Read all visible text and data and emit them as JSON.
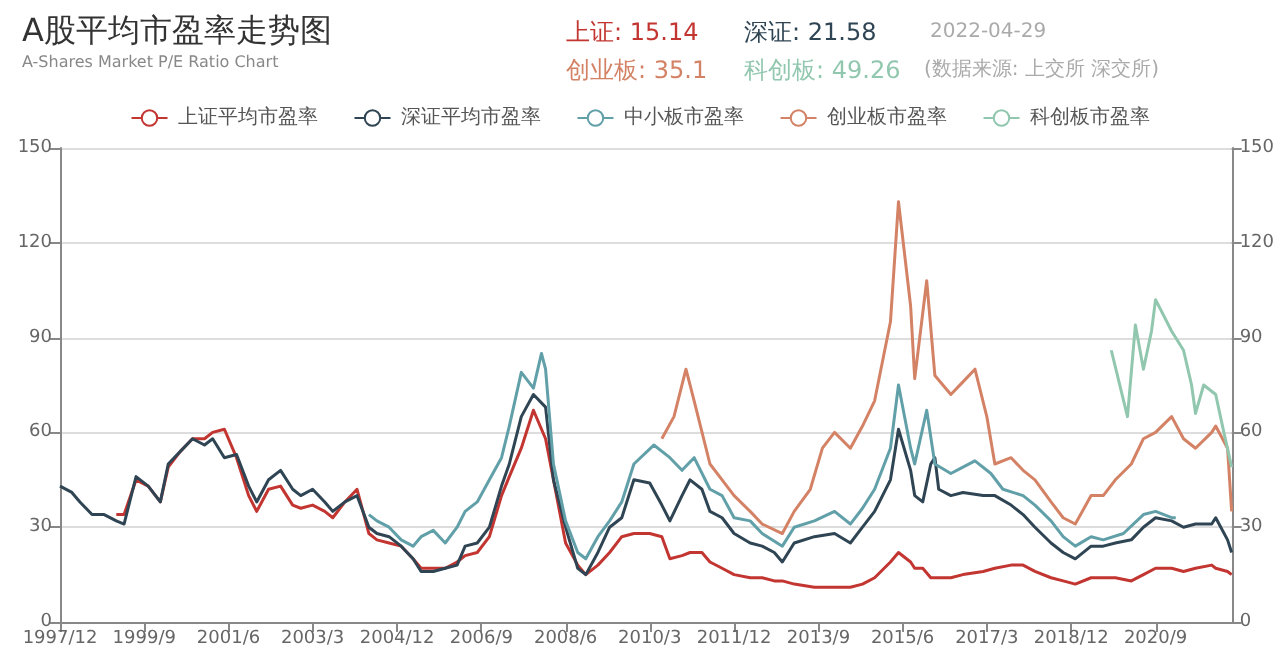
{
  "chart_data": {
    "type": "line",
    "title": "A股平均市盈率走势图",
    "subtitle": "A-Shares Market P/E Ratio Chart",
    "annotations": [
      "上证: 15.14",
      "深证: 21.58",
      "2022-04-29",
      "创业板: 35.1",
      "科创板: 49.26",
      "(数据来源: 上交所 深交所)"
    ],
    "xlim": [
      "1997-12",
      "2022-04"
    ],
    "xticks": [
      {
        "value": "1997-12",
        "label": "1997/12"
      },
      {
        "value": "1999-09",
        "label": "1999/9"
      },
      {
        "value": "2001-06",
        "label": "2001/6"
      },
      {
        "value": "2003-03",
        "label": "2003/3"
      },
      {
        "value": "2004-12",
        "label": "2004/12"
      },
      {
        "value": "2006-09",
        "label": "2006/9"
      },
      {
        "value": "2008-06",
        "label": "2008/6"
      },
      {
        "value": "2010-03",
        "label": "2010/3"
      },
      {
        "value": "2011-12",
        "label": "2011/12"
      },
      {
        "value": "2013-09",
        "label": "2013/9"
      },
      {
        "value": "2015-06",
        "label": "2015/6"
      },
      {
        "value": "2017-03",
        "label": "2017/3"
      },
      {
        "value": "2018-12",
        "label": "2018/12"
      },
      {
        "value": "2020-09",
        "label": "2020/9"
      }
    ],
    "ylim": [
      0,
      150
    ],
    "yticks": [
      0,
      30,
      60,
      90,
      120,
      150
    ],
    "y2lim": [
      0,
      150
    ],
    "y2ticks": [
      0,
      30,
      60,
      90,
      120,
      150
    ],
    "grid": "y",
    "legend": "top",
    "marker": "none",
    "line_style": "solid",
    "series": [
      {
        "name": "上证平均市盈率",
        "color": "#c23531",
        "x": [
          "1999-02",
          "1999-04",
          "1999-07",
          "1999-10",
          "2000-01",
          "2000-03",
          "2000-06",
          "2000-09",
          "2000-12",
          "2001-02",
          "2001-05",
          "2001-08",
          "2001-11",
          "2002-01",
          "2002-04",
          "2002-07",
          "2002-10",
          "2002-12",
          "2003-03",
          "2003-06",
          "2003-08",
          "2003-11",
          "2004-02",
          "2004-05",
          "2004-07",
          "2004-10",
          "2005-01",
          "2005-04",
          "2005-06",
          "2005-09",
          "2005-12",
          "2006-03",
          "2006-05",
          "2006-08",
          "2006-11",
          "2007-02",
          "2007-04",
          "2007-07",
          "2007-10",
          "2008-01",
          "2008-03",
          "2008-06",
          "2008-09",
          "2008-11",
          "2009-02",
          "2009-05",
          "2009-08",
          "2009-11",
          "2010-03",
          "2010-06",
          "2010-08",
          "2010-11",
          "2011-01",
          "2011-04",
          "2011-06",
          "2011-09",
          "2011-12",
          "2012-04",
          "2012-07",
          "2012-10",
          "2012-12",
          "2013-03",
          "2013-08",
          "2014-01",
          "2014-05",
          "2014-08",
          "2014-11",
          "2015-03",
          "2015-05",
          "2015-08",
          "2015-09",
          "2015-11",
          "2016-01",
          "2016-06",
          "2016-09",
          "2017-02",
          "2017-05",
          "2017-09",
          "2017-12",
          "2018-03",
          "2018-07",
          "2018-10",
          "2019-01",
          "2019-05",
          "2019-08",
          "2019-11",
          "2020-03",
          "2020-06",
          "2020-09",
          "2021-01",
          "2021-04",
          "2021-07",
          "2021-11",
          "2021-12",
          "2022-03",
          "2022-04"
        ],
        "values": [
          34,
          34,
          45,
          43,
          38,
          49,
          54,
          58,
          58,
          60,
          61,
          52,
          40,
          35,
          42,
          43,
          37,
          36,
          37,
          35,
          33,
          38,
          42,
          28,
          26,
          25,
          24,
          20,
          17,
          17,
          17,
          19,
          21,
          22,
          27,
          40,
          46,
          55,
          67,
          58,
          45,
          25,
          18,
          15,
          18,
          22,
          27,
          28,
          28,
          27,
          20,
          21,
          22,
          22,
          19,
          17,
          15,
          14,
          14,
          13,
          13,
          12,
          11,
          11,
          11,
          12,
          14,
          19,
          22,
          19,
          17,
          17,
          14,
          14,
          15,
          16,
          17,
          18,
          18,
          16,
          14,
          13,
          12,
          14,
          14,
          14,
          13,
          15,
          17,
          17,
          16,
          17,
          18,
          17,
          16,
          15
        ]
      },
      {
        "name": "深证平均市盈率",
        "color": "#2f4554",
        "x": [
          "1997-12",
          "1998-03",
          "1998-05",
          "1998-08",
          "1998-11",
          "1999-02",
          "1999-04",
          "1999-07",
          "1999-10",
          "2000-01",
          "2000-03",
          "2000-06",
          "2000-09",
          "2000-12",
          "2001-02",
          "2001-05",
          "2001-08",
          "2001-11",
          "2002-01",
          "2002-04",
          "2002-07",
          "2002-10",
          "2002-12",
          "2003-03",
          "2003-06",
          "2003-08",
          "2003-11",
          "2004-02",
          "2004-05",
          "2004-07",
          "2004-10",
          "2005-01",
          "2005-04",
          "2005-06",
          "2005-09",
          "2005-12",
          "2006-03",
          "2006-05",
          "2006-08",
          "2006-11",
          "2007-02",
          "2007-04",
          "2007-07",
          "2007-10",
          "2008-01",
          "2008-03",
          "2008-06",
          "2008-09",
          "2008-11",
          "2009-02",
          "2009-05",
          "2009-08",
          "2009-11",
          "2010-03",
          "2010-06",
          "2010-08",
          "2010-11",
          "2011-01",
          "2011-04",
          "2011-06",
          "2011-09",
          "2011-12",
          "2012-04",
          "2012-07",
          "2012-10",
          "2012-12",
          "2013-03",
          "2013-08",
          "2014-01",
          "2014-05",
          "2014-08",
          "2014-11",
          "2015-03",
          "2015-05",
          "2015-08",
          "2015-09",
          "2015-11",
          "2016-01",
          "2016-02",
          "2016-03",
          "2016-06",
          "2016-09",
          "2017-02",
          "2017-05",
          "2017-09",
          "2017-12",
          "2018-03",
          "2018-07",
          "2018-10",
          "2019-01",
          "2019-05",
          "2019-08",
          "2019-11",
          "2020-03",
          "2020-06",
          "2020-09",
          "2021-01",
          "2021-04",
          "2021-07",
          "2021-11",
          "2021-12",
          "2022-03",
          "2022-04"
        ],
        "values": [
          43,
          41,
          38,
          34,
          34,
          32,
          31,
          46,
          43,
          38,
          50,
          54,
          58,
          56,
          58,
          52,
          53,
          43,
          38,
          45,
          48,
          42,
          40,
          42,
          38,
          35,
          38,
          40,
          30,
          28,
          27,
          24,
          20,
          16,
          16,
          17,
          18,
          24,
          25,
          30,
          43,
          50,
          65,
          72,
          68,
          45,
          30,
          17,
          15,
          22,
          30,
          33,
          45,
          44,
          37,
          32,
          40,
          45,
          42,
          35,
          33,
          28,
          25,
          24,
          22,
          19,
          25,
          27,
          28,
          25,
          30,
          35,
          45,
          61,
          48,
          40,
          38,
          50,
          52,
          42,
          40,
          41,
          40,
          40,
          37,
          34,
          30,
          25,
          22,
          20,
          24,
          24,
          25,
          26,
          30,
          33,
          32,
          30,
          31,
          31,
          33,
          26,
          22
        ]
      },
      {
        "name": "中小板市盈率",
        "color": "#61a0a8",
        "x": [
          "2004-05",
          "2004-07",
          "2004-10",
          "2005-01",
          "2005-04",
          "2005-06",
          "2005-09",
          "2005-12",
          "2006-03",
          "2006-05",
          "2006-08",
          "2006-11",
          "2007-02",
          "2007-04",
          "2007-07",
          "2007-10",
          "2007-12",
          "2008-01",
          "2008-03",
          "2008-06",
          "2008-09",
          "2008-11",
          "2009-02",
          "2009-05",
          "2009-08",
          "2009-11",
          "2010-04",
          "2010-08",
          "2010-11",
          "2011-02",
          "2011-06",
          "2011-09",
          "2011-12",
          "2012-04",
          "2012-07",
          "2012-12",
          "2013-03",
          "2013-08",
          "2014-01",
          "2014-05",
          "2014-08",
          "2014-11",
          "2015-03",
          "2015-05",
          "2015-08",
          "2015-09",
          "2015-12",
          "2016-02",
          "2016-06",
          "2016-09",
          "2016-12",
          "2017-04",
          "2017-07",
          "2017-12",
          "2018-03",
          "2018-07",
          "2018-10",
          "2019-01",
          "2019-05",
          "2019-08",
          "2020-01",
          "2020-06",
          "2020-09",
          "2021-01",
          "2021-02"
        ],
        "values": [
          34,
          32,
          30,
          26,
          24,
          27,
          29,
          25,
          30,
          35,
          38,
          45,
          52,
          62,
          79,
          74,
          85,
          80,
          50,
          32,
          22,
          20,
          27,
          32,
          38,
          50,
          56,
          52,
          48,
          52,
          42,
          40,
          33,
          32,
          28,
          24,
          30,
          32,
          35,
          31,
          36,
          42,
          55,
          75,
          55,
          50,
          67,
          50,
          47,
          49,
          51,
          47,
          42,
          40,
          37,
          32,
          27,
          24,
          27,
          26,
          28,
          34,
          35,
          33,
          33
        ]
      },
      {
        "name": "创业板市盈率",
        "color": "#d48265",
        "x": [
          "2010-06",
          "2010-09",
          "2010-12",
          "2011-02",
          "2011-06",
          "2011-09",
          "2011-12",
          "2012-04",
          "2012-07",
          "2012-12",
          "2013-03",
          "2013-07",
          "2013-10",
          "2014-01",
          "2014-05",
          "2014-08",
          "2014-11",
          "2015-03",
          "2015-05",
          "2015-08",
          "2015-09",
          "2015-12",
          "2016-02",
          "2016-06",
          "2016-09",
          "2016-12",
          "2017-03",
          "2017-05",
          "2017-09",
          "2017-12",
          "2018-03",
          "2018-07",
          "2018-10",
          "2019-01",
          "2019-05",
          "2019-08",
          "2019-11",
          "2020-03",
          "2020-06",
          "2020-09",
          "2021-01",
          "2021-04",
          "2021-07",
          "2021-11",
          "2021-12",
          "2022-03",
          "2022-04"
        ],
        "values": [
          58,
          65,
          80,
          70,
          50,
          45,
          40,
          35,
          31,
          28,
          35,
          42,
          55,
          60,
          55,
          62,
          70,
          95,
          133,
          100,
          77,
          108,
          78,
          72,
          76,
          80,
          65,
          50,
          52,
          48,
          45,
          38,
          33,
          31,
          40,
          40,
          45,
          50,
          58,
          60,
          65,
          58,
          55,
          60,
          62,
          55,
          35
        ]
      },
      {
        "name": "科创板市盈率",
        "color": "#91c7ae",
        "x": [
          "2019-10",
          "2020-02",
          "2020-04",
          "2020-06",
          "2020-08",
          "2020-09",
          "2021-01",
          "2021-04",
          "2021-06",
          "2021-07",
          "2021-09",
          "2021-12",
          "2022-02",
          "2022-04"
        ],
        "values": [
          86,
          65,
          94,
          80,
          92,
          102,
          92,
          86,
          75,
          66,
          75,
          72,
          60,
          49
        ]
      }
    ]
  }
}
